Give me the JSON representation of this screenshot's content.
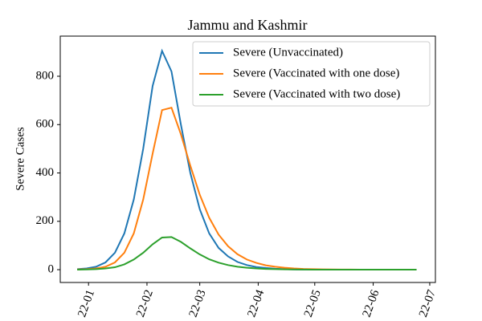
{
  "chart_data": {
    "type": "line",
    "title": "Jammu and Kashmir",
    "y_label": "Severe Cases",
    "x": [
      -6,
      -1,
      4,
      9,
      14,
      19,
      24,
      29,
      34,
      39,
      44,
      49,
      54,
      59,
      64,
      69,
      74,
      79,
      84,
      89,
      94,
      99,
      104,
      109,
      114,
      119,
      124,
      129,
      134,
      139,
      144,
      149,
      154,
      159,
      164,
      169,
      174
    ],
    "series": [
      {
        "name": "Severe (Unvaccinated)",
        "color": "#1f77b4",
        "values": [
          2,
          5,
          12,
          30,
          70,
          150,
          290,
          500,
          760,
          905,
          820,
          600,
          400,
          250,
          150,
          90,
          55,
          32,
          19,
          11,
          7,
          4,
          2,
          1,
          0.6,
          0.4,
          0.2,
          0.1,
          0.1,
          0,
          0,
          0,
          0,
          0,
          0,
          0,
          0
        ]
      },
      {
        "name": "Severe (Vaccinated with one dose)",
        "color": "#ff7f0e",
        "values": [
          1,
          2,
          5,
          12,
          30,
          70,
          150,
          290,
          480,
          660,
          670,
          560,
          430,
          310,
          215,
          145,
          97,
          64,
          42,
          28,
          18,
          12,
          8,
          5,
          3,
          2,
          1.5,
          1,
          0.6,
          0.4,
          0.3,
          0.2,
          0.1,
          0.1,
          0,
          0,
          0
        ]
      },
      {
        "name": "Severe (Vaccinated with two dose)",
        "color": "#2ca02c",
        "values": [
          0.3,
          0.8,
          2,
          5,
          10,
          22,
          42,
          70,
          105,
          133,
          135,
          115,
          88,
          63,
          43,
          29,
          19,
          12,
          8,
          5,
          3,
          2,
          1.3,
          0.8,
          0.5,
          0.3,
          0.2,
          0.1,
          0.1,
          0,
          0,
          0,
          0,
          0,
          0,
          0,
          0
        ]
      }
    ],
    "xlim": [
      -15,
      184
    ],
    "ylim": [
      -53,
      966
    ],
    "xticks": [
      {
        "value": 0,
        "label": "22-01"
      },
      {
        "value": 31,
        "label": "22-02"
      },
      {
        "value": 59,
        "label": "22-03"
      },
      {
        "value": 90,
        "label": "22-04"
      },
      {
        "value": 120,
        "label": "22-05"
      },
      {
        "value": 151,
        "label": "22-06"
      },
      {
        "value": 181,
        "label": "22-07"
      }
    ],
    "yticks": [
      0,
      200,
      400,
      600,
      800
    ],
    "legend": "upper right"
  }
}
